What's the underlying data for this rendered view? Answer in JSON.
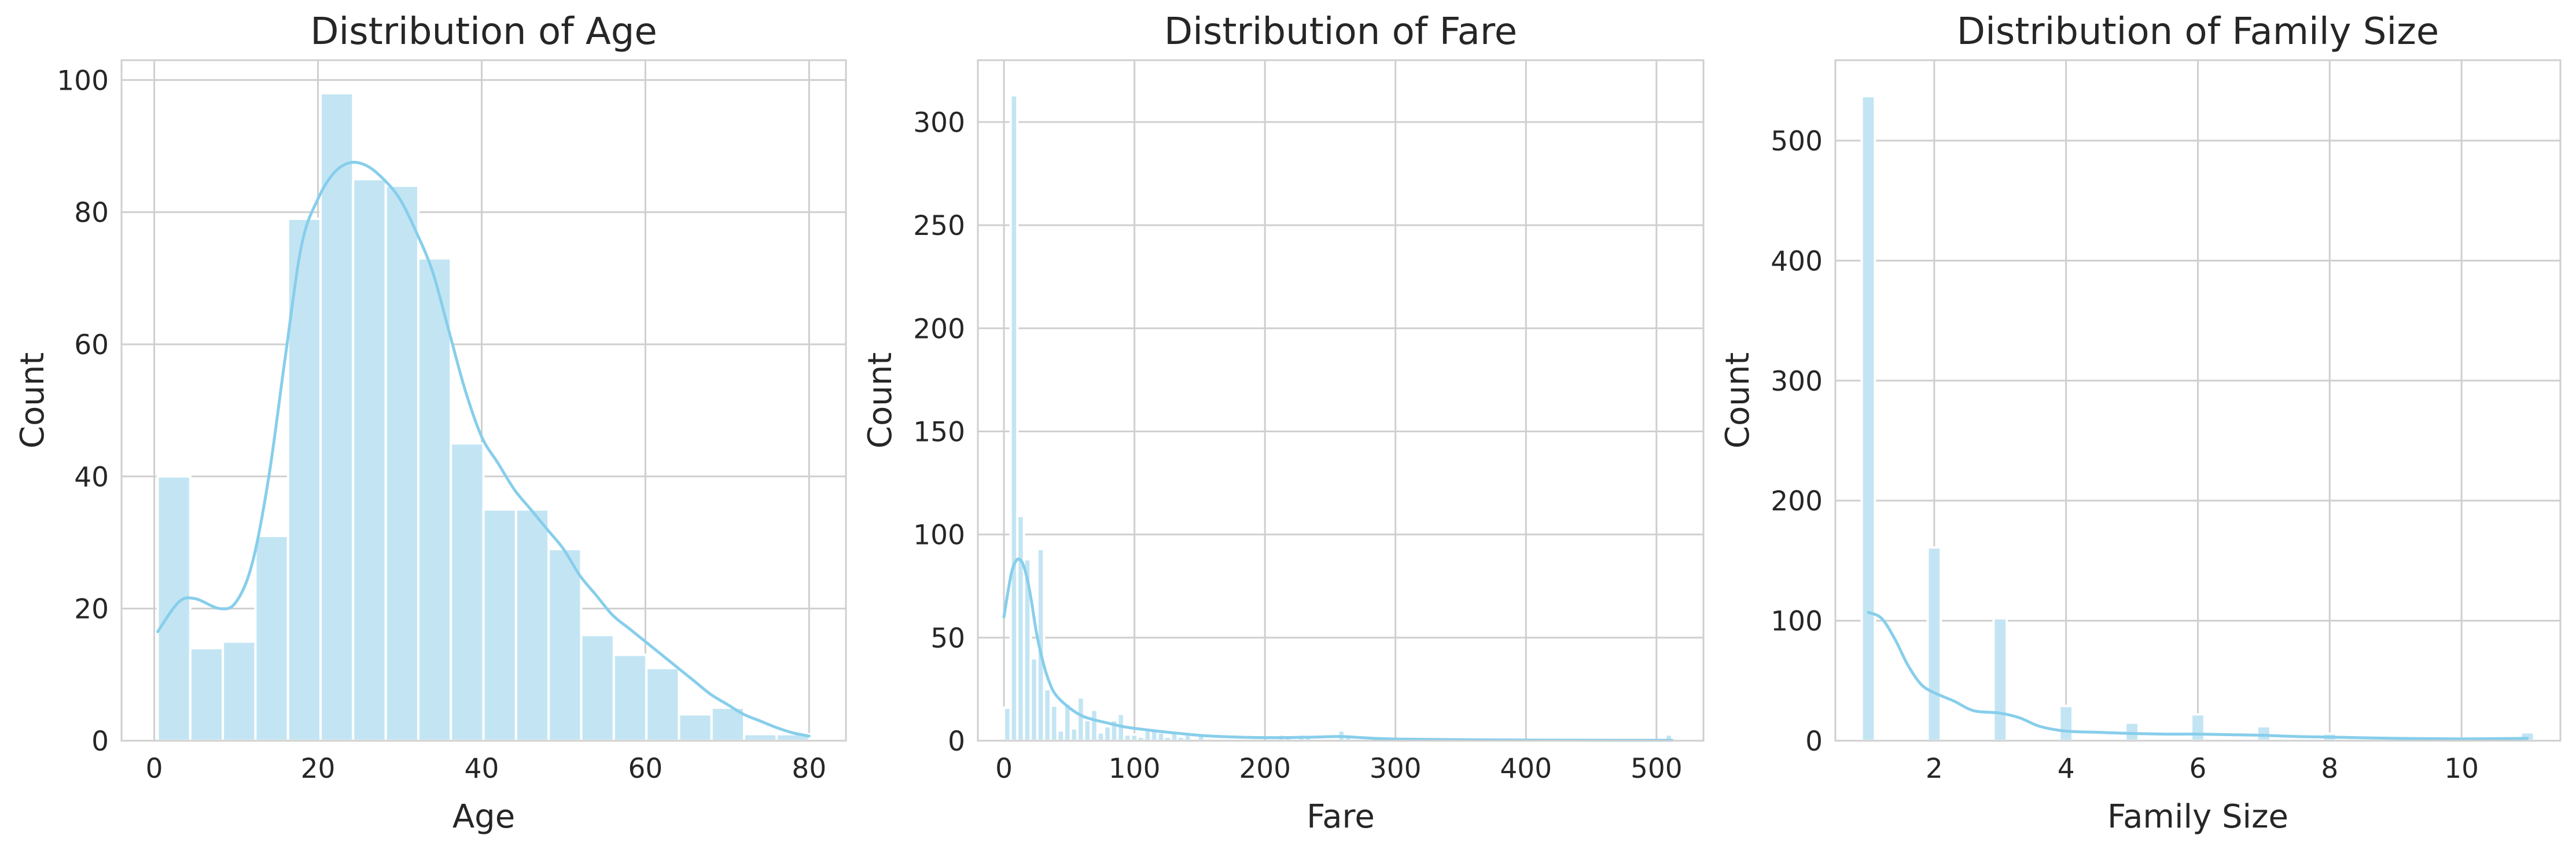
{
  "colors": {
    "bar": "#c3e5f3",
    "kde": "#87ceeb",
    "grid": "#cfcfcf",
    "text": "#262626"
  },
  "chart_data": [
    {
      "type": "bar",
      "subtype": "histogram",
      "title": "Distribution of Age",
      "xlabel": "Age",
      "ylabel": "Count",
      "xlim": [
        -4.0,
        84.5
      ],
      "ylim": [
        0,
        103
      ],
      "xticks": [
        0,
        20,
        40,
        60,
        80
      ],
      "yticks": [
        0,
        20,
        40,
        60,
        80,
        100
      ],
      "grid": true,
      "bins": {
        "start": 0.42,
        "width": 3.98,
        "counts": [
          40,
          14,
          15,
          31,
          79,
          98,
          85,
          84,
          73,
          45,
          35,
          35,
          29,
          16,
          13,
          11,
          4,
          5,
          1,
          1
        ]
      },
      "kde": {
        "x": [
          0.42,
          3,
          5,
          8,
          10,
          12,
          14,
          16,
          18,
          20,
          22,
          24,
          26,
          28,
          30,
          32,
          34,
          36,
          38,
          40,
          42,
          44,
          46,
          48,
          50,
          52,
          54,
          56,
          58,
          60,
          62,
          64,
          66,
          68,
          70,
          72,
          74,
          76,
          78,
          80
        ],
        "y": [
          16.5,
          21,
          21.5,
          20,
          21,
          27,
          40,
          58,
          75,
          82,
          86,
          87.5,
          87,
          85,
          82,
          77,
          71,
          62,
          53,
          46,
          42,
          38,
          35,
          32,
          29,
          25,
          22,
          19,
          17,
          15,
          13,
          11,
          9,
          7,
          5.5,
          4,
          3,
          2,
          1.2,
          0.7
        ]
      }
    },
    {
      "type": "bar",
      "subtype": "histogram",
      "title": "Distribution of Fare",
      "xlabel": "Fare",
      "ylabel": "Count",
      "xlim": [
        -20,
        536
      ],
      "ylim": [
        0,
        330
      ],
      "xticks": [
        0,
        100,
        200,
        300,
        400,
        500
      ],
      "yticks": [
        0,
        50,
        100,
        150,
        200,
        250,
        300
      ],
      "grid": true,
      "bins": {
        "start": 0,
        "width": 5.12,
        "counts": [
          16,
          313,
          109,
          88,
          40,
          93,
          25,
          17,
          5,
          18,
          6,
          21,
          10,
          15,
          4,
          7,
          10,
          13,
          3,
          3,
          2,
          5,
          6,
          4,
          2,
          4,
          2,
          3,
          1,
          3,
          1,
          1,
          0,
          0,
          0,
          0,
          0,
          0,
          0,
          0,
          0,
          3,
          2,
          1,
          3,
          2,
          0,
          0,
          0,
          0,
          5,
          2,
          0,
          0,
          0,
          0,
          0,
          0,
          0,
          0,
          0,
          0,
          0,
          0,
          0,
          0,
          0,
          0,
          0,
          0,
          0,
          0,
          0,
          0,
          0,
          0,
          0,
          0,
          0,
          0,
          0,
          0,
          0,
          0,
          0,
          0,
          0,
          0,
          0,
          0,
          0,
          0,
          0,
          0,
          0,
          0,
          0,
          0,
          0,
          3
        ]
      },
      "kde": {
        "x": [
          0,
          3,
          6,
          9,
          12,
          15,
          18,
          21,
          25,
          30,
          35,
          40,
          50,
          60,
          70,
          80,
          90,
          100,
          120,
          140,
          160,
          200,
          240,
          260,
          300,
          400,
          512
        ],
        "y": [
          60,
          72,
          82,
          87,
          88,
          85,
          78,
          68,
          52,
          38,
          28,
          22,
          16,
          12,
          10,
          8.5,
          7,
          6,
          4.5,
          3.2,
          2.2,
          1.5,
          1.8,
          2,
          0.8,
          0.3,
          0.2
        ]
      }
    },
    {
      "type": "bar",
      "subtype": "histogram",
      "title": "Distribution of Family Size",
      "xlabel": "Family Size",
      "ylabel": "Count",
      "xlim": [
        0.5,
        11.5
      ],
      "ylim": [
        0,
        567
      ],
      "xticks": [
        2,
        4,
        6,
        8,
        10
      ],
      "yticks": [
        0,
        100,
        200,
        300,
        400,
        500
      ],
      "grid": true,
      "bars": {
        "width": 0.2,
        "x": [
          1,
          2,
          3,
          4,
          5,
          6,
          7,
          8,
          11
        ],
        "counts": [
          537,
          161,
          102,
          29,
          15,
          22,
          12,
          6,
          7
        ]
      },
      "kde": {
        "x": [
          1,
          1.2,
          1.4,
          1.6,
          1.8,
          2,
          2.3,
          2.6,
          3,
          3.3,
          3.6,
          4,
          4.5,
          5,
          5.5,
          6,
          6.5,
          7,
          7.5,
          8,
          9,
          10,
          11
        ],
        "y": [
          107,
          102,
          85,
          63,
          47,
          40,
          33,
          25,
          23,
          19,
          12,
          8,
          7,
          6,
          5.5,
          5.5,
          5,
          4.5,
          3.5,
          3,
          2,
          1.5,
          2
        ]
      }
    }
  ]
}
